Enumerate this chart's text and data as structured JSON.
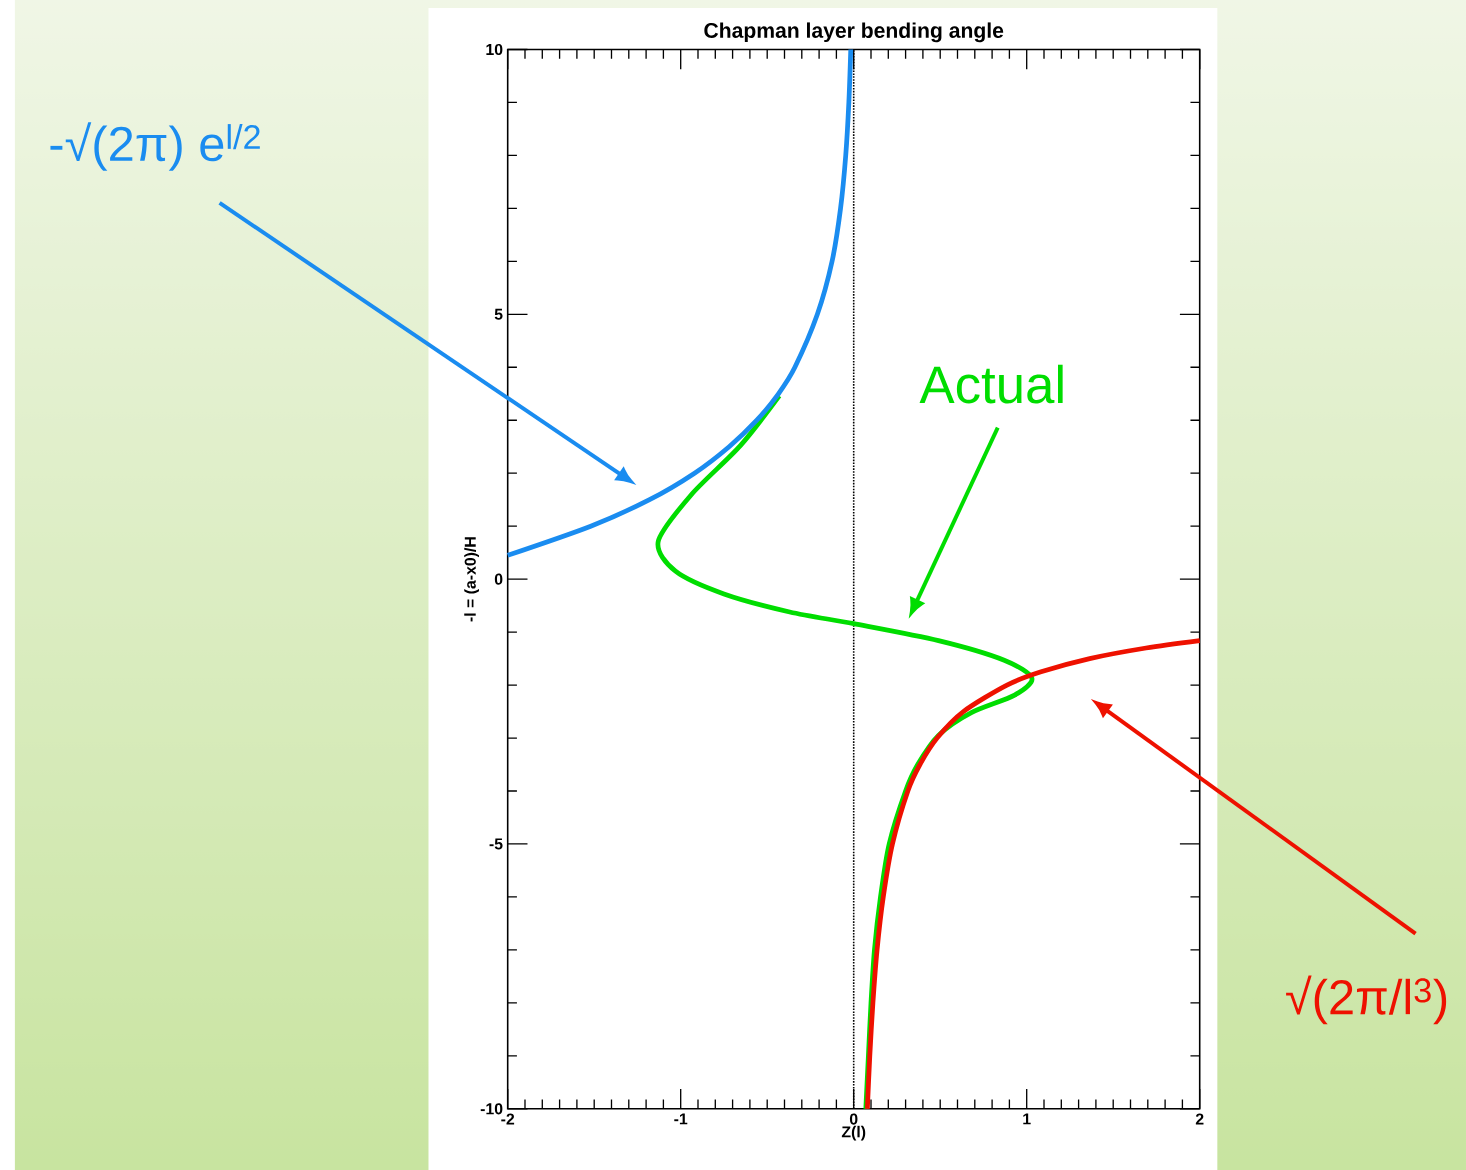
{
  "chart_data": {
    "type": "line",
    "title": "Chapman layer bending angle",
    "xlabel": "Z(l)",
    "ylabel": "-l = (a-x0)/H",
    "xlim": [
      -2,
      2
    ],
    "ylim": [
      -10,
      10
    ],
    "xticks": [
      -2,
      -1,
      0,
      1,
      2
    ],
    "yticks": [
      -10,
      -5,
      0,
      5,
      10
    ],
    "grid": false,
    "ref_lines": [
      {
        "axis": "x",
        "value": 0,
        "color": "#000000",
        "line_style": "dotted"
      }
    ],
    "series": [
      {
        "name": "Actual",
        "color": "#00dd00",
        "x": [
          null,
          null,
          null,
          null,
          null,
          null,
          null,
          -0.43,
          -0.655,
          -0.94,
          -1.13,
          -1.03,
          -0.75,
          -0.37,
          0,
          0.49,
          0.87,
          1.03,
          0.93,
          0.68,
          0.49,
          0.37,
          0.3,
          0.205,
          0.155,
          0.12,
          0.1,
          0.085,
          0.07
        ],
        "values": [
          null,
          null,
          null,
          null,
          null,
          null,
          null,
          3.46,
          2.52,
          1.59,
          0.71,
          0.15,
          -0.28,
          -0.62,
          -0.84,
          -1.16,
          -1.53,
          -1.87,
          -2.19,
          -2.52,
          -2.95,
          -3.5,
          -4,
          -5,
          -6,
          -7,
          -8,
          -9,
          -10
        ]
      },
      {
        "name": "-√(2π) e$^{l/2}$",
        "color": "#1a8cf0",
        "x": [
          -2.0,
          -1.52,
          -1.18,
          -0.92,
          -0.72,
          -0.56,
          -0.435,
          -0.34,
          -0.21,
          -0.125,
          -0.076,
          -0.046,
          -0.028,
          -0.017
        ],
        "values": [
          0.45,
          1,
          1.5,
          2,
          2.5,
          3,
          3.5,
          4,
          5,
          6,
          7,
          8,
          9,
          10
        ]
      },
      {
        "name": "√(2π/l$^{3}$)",
        "color": "#ee1100",
        "x": [
          2,
          1.69,
          1.364,
          1.083,
          0.886,
          0.634,
          0.482,
          0.383,
          0.313,
          0.224,
          0.171,
          0.135,
          0.111,
          0.093,
          0.079
        ],
        "values": [
          -1.16,
          -1.3,
          -1.5,
          -1.75,
          -2,
          -2.5,
          -3,
          -3.5,
          -4,
          -5,
          -6,
          -7,
          -8,
          -9,
          -10
        ]
      }
    ]
  }
}
